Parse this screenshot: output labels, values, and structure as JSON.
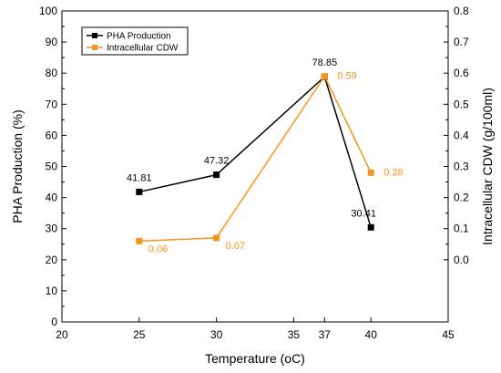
{
  "chart_data": {
    "type": "line",
    "xlabel": "Temperature (oC)",
    "ylabel_left": "PHA Production (%)",
    "ylabel_right": "Intracellular CDW (g/100ml)",
    "x_ticks": [
      20,
      25,
      30,
      35,
      37,
      40,
      45
    ],
    "xlim": [
      20,
      45
    ],
    "ylim_left": [
      0,
      100
    ],
    "y_ticks_left": [
      0,
      10,
      20,
      30,
      40,
      50,
      60,
      70,
      80,
      90,
      100
    ],
    "ylim_right": [
      -0.2,
      0.8
    ],
    "y_ticks_right": [
      "0.0",
      "0.1",
      "0.2",
      "0.3",
      "0.4",
      "0.5",
      "0.6",
      "0.7",
      "0.8"
    ],
    "y_ticks_right_values": [
      0.0,
      0.1,
      0.2,
      0.3,
      0.4,
      0.5,
      0.6,
      0.7,
      0.8
    ],
    "legend_position": "top-left",
    "series": [
      {
        "name": "PHA Production",
        "axis": "left",
        "color": "#000000",
        "x": [
          25,
          30,
          37,
          40
        ],
        "y": [
          41.81,
          47.32,
          78.85,
          30.41
        ],
        "labels": [
          "41.81",
          "47.32",
          "78.85",
          "30.41"
        ]
      },
      {
        "name": "Intracellular CDW",
        "axis": "right",
        "color": "#f7941d",
        "x": [
          25,
          30,
          37,
          40
        ],
        "y": [
          0.06,
          0.07,
          0.59,
          0.28
        ],
        "labels": [
          "0.06",
          "0.07",
          "0.59",
          "0.28"
        ]
      }
    ]
  }
}
